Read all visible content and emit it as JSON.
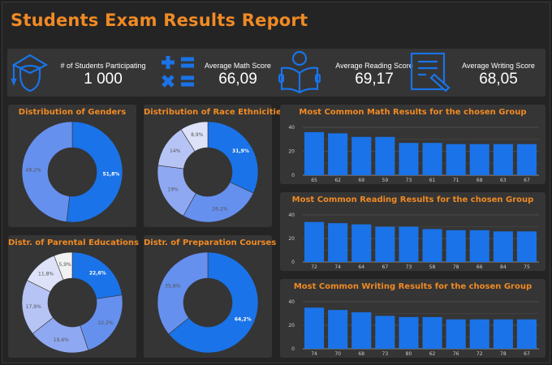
{
  "header": {
    "title": "Students Exam Results Report"
  },
  "kpis": [
    {
      "label": "# of Students Participating",
      "value": "1 000",
      "icon": "graduate-icon"
    },
    {
      "label": "Average Math Score",
      "value": "66,09",
      "icon": "math-operators-icon"
    },
    {
      "label": "Average Reading Score",
      "value": "69,17",
      "icon": "reading-book-icon"
    },
    {
      "label": "Average Writing Score",
      "value": "68,05",
      "icon": "writing-document-icon"
    }
  ],
  "colors": {
    "accent": "#f08a24",
    "primary": "#1a73e8"
  },
  "chart_data": [
    {
      "type": "pie",
      "title": "Distribution of Genders",
      "labels": [
        "51,8%",
        "48,2%"
      ],
      "values": [
        51.8,
        48.2
      ],
      "colors": [
        "#1a73e8",
        "#6690ee"
      ]
    },
    {
      "type": "pie",
      "title": "Distribution of Race Ethnicities",
      "labels": [
        "31,9%",
        "26,2%",
        "19%",
        "14%",
        "8,9%"
      ],
      "values": [
        31.9,
        26.2,
        19,
        14,
        8.9
      ],
      "colors": [
        "#1a73e8",
        "#6690ee",
        "#8fa8f2",
        "#b6c4f5",
        "#dde2f8"
      ]
    },
    {
      "type": "pie",
      "title": "Distr. of Parental Educations",
      "labels": [
        "22,6%",
        "22,2%",
        "19,6%",
        "17,9%",
        "11,8%",
        "5,9%"
      ],
      "values": [
        22.6,
        22.2,
        19.6,
        17.9,
        11.8,
        5.9
      ],
      "colors": [
        "#1a73e8",
        "#6690ee",
        "#8fa8f2",
        "#b6c4f5",
        "#dde2f8",
        "#f2f2f2"
      ]
    },
    {
      "type": "pie",
      "title": "Distr. of Preparation Courses",
      "labels": [
        "64,2%",
        "35,8%"
      ],
      "values": [
        64.2,
        35.8
      ],
      "colors": [
        "#1a73e8",
        "#6690ee"
      ]
    },
    {
      "type": "bar",
      "title": "Most Common Math Results for the chosen Group",
      "categories": [
        "65",
        "62",
        "69",
        "59",
        "73",
        "61",
        "71",
        "68",
        "63",
        "67"
      ],
      "values": [
        36,
        35,
        32,
        32,
        27,
        27,
        26,
        26,
        26,
        26
      ],
      "yticks": [
        "0",
        "20",
        "40"
      ],
      "ylim": [
        0,
        40
      ],
      "grid": true
    },
    {
      "type": "bar",
      "title": "Most Common Reading Results for the chosen Group",
      "categories": [
        "72",
        "74",
        "64",
        "67",
        "73",
        "58",
        "78",
        "66",
        "84",
        "75"
      ],
      "values": [
        34,
        33,
        32,
        30,
        30,
        28,
        27,
        27,
        26,
        26
      ],
      "yticks": [
        "0",
        "20",
        "40"
      ],
      "ylim": [
        0,
        40
      ],
      "grid": true
    },
    {
      "type": "bar",
      "title": "Most Common Writing Results for the chosen Group",
      "categories": [
        "74",
        "70",
        "68",
        "73",
        "80",
        "62",
        "76",
        "72",
        "78",
        "67"
      ],
      "values": [
        35,
        33,
        31,
        28,
        27,
        27,
        25,
        25,
        25,
        25
      ],
      "yticks": [
        "0",
        "20",
        "40"
      ],
      "ylim": [
        0,
        40
      ],
      "grid": true
    }
  ]
}
